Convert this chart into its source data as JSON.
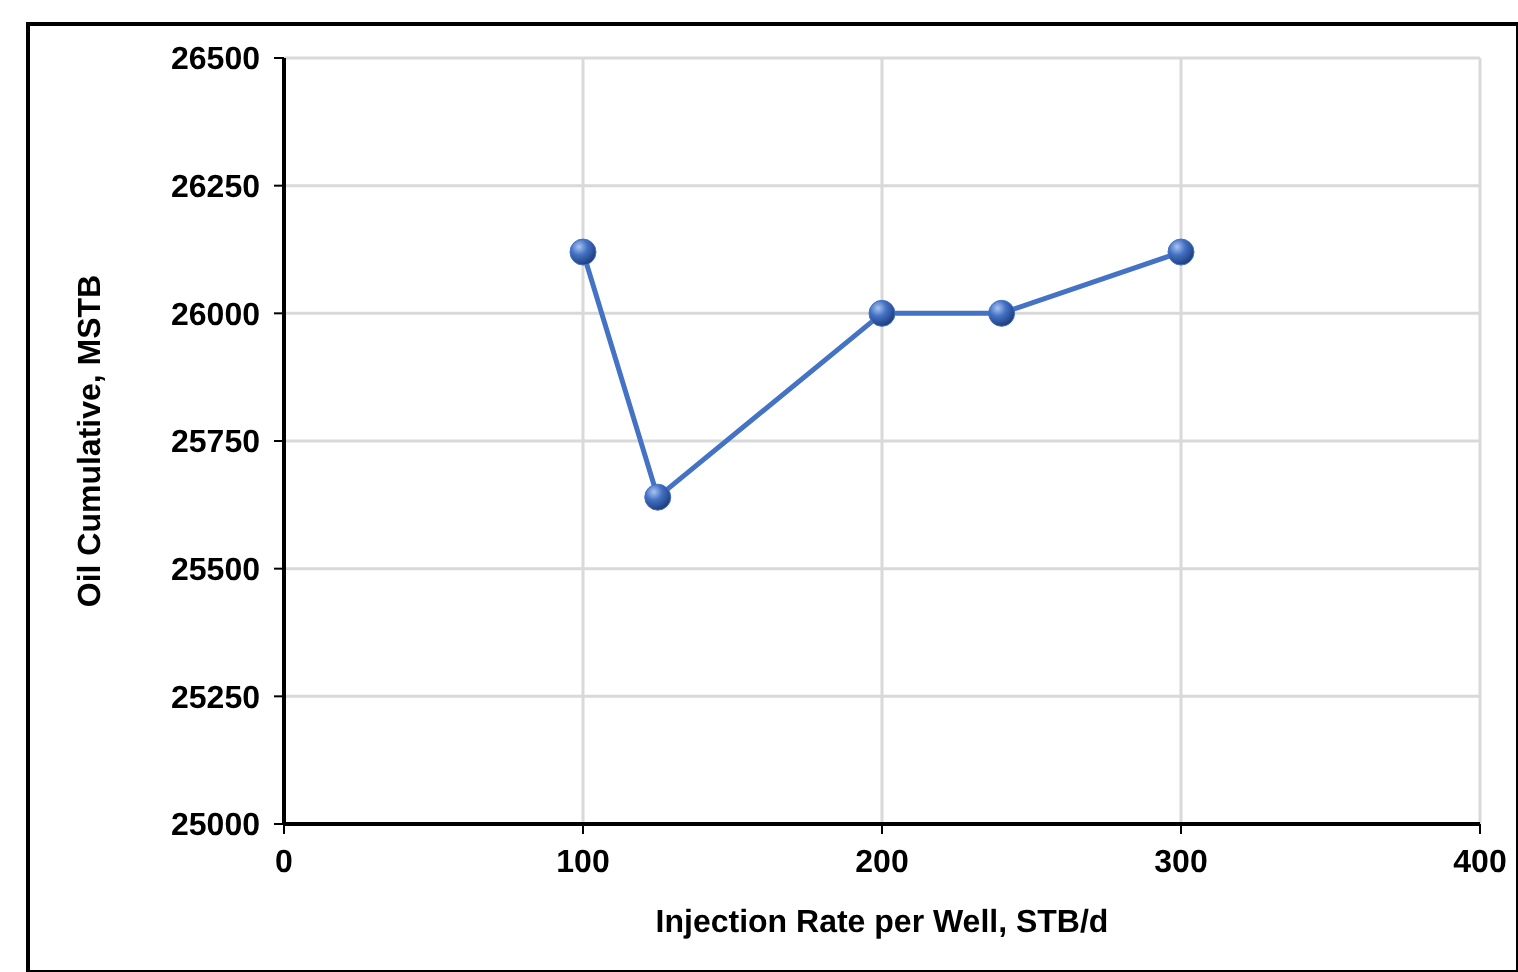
{
  "chart_data": {
    "type": "line",
    "xlabel": "Injection Rate per Well, STB/d",
    "ylabel": "Oil Cumulative, MSTB",
    "x": [
      100,
      125,
      200,
      240,
      300
    ],
    "series": [
      {
        "color": "#4472c4",
        "values": [
          26120,
          25640,
          26000,
          26000,
          26120
        ]
      }
    ],
    "xlim": [
      0,
      400
    ],
    "xticks": [
      0,
      100,
      200,
      300,
      400
    ],
    "ylim": [
      25000,
      26500
    ],
    "yticks": [
      25000,
      25250,
      25500,
      25750,
      26000,
      26250,
      26500
    ],
    "grid": true,
    "marker": "circle",
    "line_style": "solid"
  }
}
